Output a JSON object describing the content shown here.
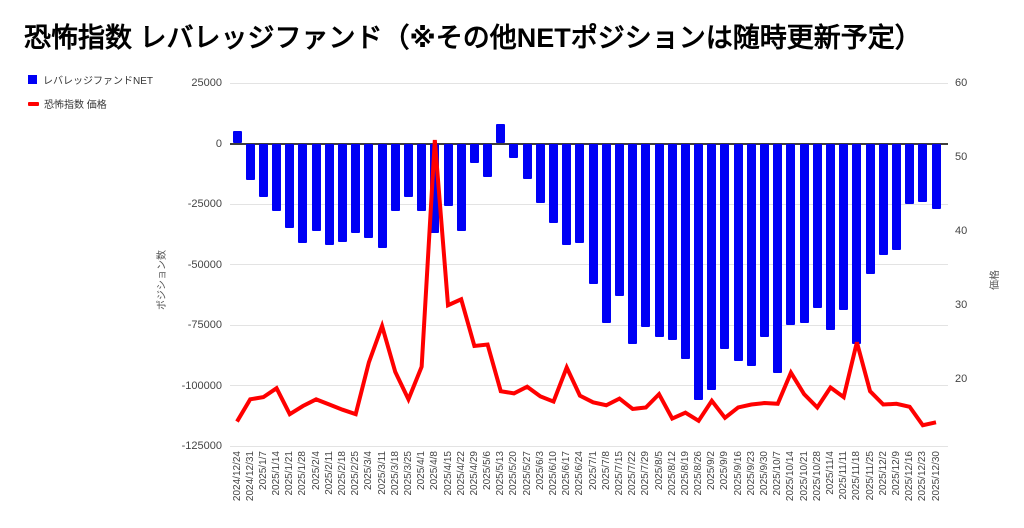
{
  "title": "恐怖指数 レバレッジファンド（※その他NETポジションは随時更新予定）",
  "legend": {
    "net_label": "レバレッジファンドNET",
    "price_label": "恐怖指数 価格"
  },
  "colors": {
    "bar": "#0000f5",
    "line": "#ff0000",
    "grid": "#e3e3e3",
    "zero_line": "#3d3d3d",
    "tick_text": "#444444",
    "title_text": "#000000"
  },
  "chart_data": {
    "type": "combo-bar-line",
    "title": "恐怖指数 レバレッジファンド（※その他NETポジションは随時更新予定）",
    "grid": true,
    "legend_position": "top-left",
    "categories": [
      "2024/12/24",
      "2024/12/31",
      "2025/1/7",
      "2025/1/14",
      "2025/1/21",
      "2025/1/28",
      "2025/2/4",
      "2025/2/11",
      "2025/2/18",
      "2025/2/25",
      "2025/3/4",
      "2025/3/11",
      "2025/3/18",
      "2025/3/25",
      "2025/4/1",
      "2025/4/8",
      "2025/4/15",
      "2025/4/22",
      "2025/4/29",
      "2025/5/6",
      "2025/5/13",
      "2025/5/20",
      "2025/5/27",
      "2025/6/3",
      "2025/6/10",
      "2025/6/17",
      "2025/6/24",
      "2025/7/1",
      "2025/7/8",
      "2025/7/15",
      "2025/7/22",
      "2025/7/29",
      "2025/8/5",
      "2025/8/12",
      "2025/8/19",
      "2025/8/26",
      "2025/9/2",
      "2025/9/9",
      "2025/9/16",
      "2025/9/23",
      "2025/9/30",
      "2025/10/7",
      "2025/10/14",
      "2025/10/21",
      "2025/10/28",
      "2025/11/4",
      "2025/11/11",
      "2025/11/18",
      "2025/11/25",
      "2025/12/2",
      "2025/12/9",
      "2025/12/16",
      "2025/12/23",
      "2025/12/30"
    ],
    "series": [
      {
        "name": "レバレッジファンドNET",
        "type": "bar",
        "y_axis": "left",
        "values": [
          5000,
          -15000,
          -22000,
          -28000,
          -35000,
          -41000,
          -36000,
          -42000,
          -40500,
          -37000,
          -39000,
          -43000,
          -28000,
          -22000,
          -28000,
          -37000,
          -26000,
          -36000,
          -8000,
          -14000,
          8000,
          -6000,
          -14500,
          -24500,
          -33000,
          -42000,
          -41000,
          -58000,
          -74000,
          -63000,
          -83000,
          -76000,
          -80000,
          -81000,
          -89000,
          -106000,
          -102000,
          -85000,
          -90000,
          -92000,
          -80000,
          -95000,
          -75000,
          -74000,
          -68000,
          -77000,
          -69000,
          -83000,
          -54000,
          -46000,
          -44000,
          -25000,
          -24000,
          -27000
        ]
      },
      {
        "name": "恐怖指数 価格",
        "type": "line",
        "y_axis": "right",
        "values": [
          14.3,
          17.3,
          17.6,
          18.8,
          15.3,
          16.4,
          17.3,
          16.6,
          15.9,
          15.3,
          22.3,
          27.2,
          21.0,
          17.3,
          21.7,
          52.3,
          30.0,
          30.8,
          24.5,
          24.7,
          18.4,
          18.1,
          19.0,
          17.7,
          17.0,
          21.6,
          17.8,
          16.9,
          16.5,
          17.4,
          16.0,
          16.2,
          18.0,
          14.7,
          15.5,
          14.4,
          17.1,
          14.8,
          16.2,
          16.6,
          16.8,
          16.7,
          20.9,
          18.0,
          16.2,
          18.9,
          17.6,
          25.0,
          18.4,
          16.6,
          16.7,
          16.3,
          13.8,
          14.2
        ]
      }
    ],
    "left_axis": {
      "title": "ポジション数",
      "ticks": [
        25000,
        0,
        -25000,
        -50000,
        -75000,
        -100000,
        -125000
      ],
      "range": [
        -125000,
        25000
      ]
    },
    "right_axis": {
      "title": "価格",
      "ticks": [
        60,
        50,
        40,
        30,
        20
      ],
      "range": [
        11,
        60
      ]
    }
  }
}
